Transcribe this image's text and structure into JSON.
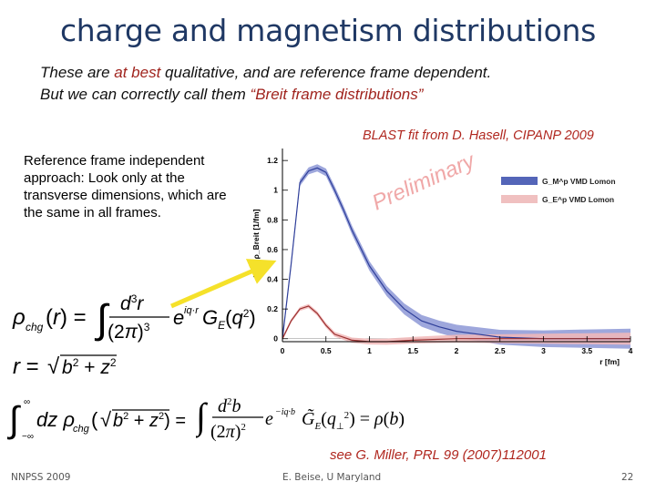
{
  "slide": {
    "title": "charge and magnetism distributions",
    "intro_line1_pre": "These are ",
    "intro_line1_em": "at best",
    "intro_line1_post": " qualitative, and are reference frame dependent.",
    "intro_line2_pre": "But we can correctly call them ",
    "intro_line2_em": "“Breit frame distributions”",
    "blast_credit": "BLAST fit from D. Hasell, CIPANP 2009",
    "side_text": "Reference frame independent approach: Look only at the transverse dimensions, which are the same in all frames.",
    "miller_ref": "see G. Miller, PRL 99 (2007)112001",
    "footer_left": "NNPSS 2009",
    "footer_center": "E. Beise, U Maryland",
    "footer_right": "22",
    "arrow_color": "#f5e12a",
    "accent_red": "#b0271f"
  },
  "chart_data": {
    "type": "line",
    "xlabel": "r [fm]",
    "ylabel": "4π r² ρ_Breit [1/fm]",
    "xlim": [
      0,
      4
    ],
    "ylim": [
      -0.02,
      1.25
    ],
    "x_ticks": [
      "0",
      "0.5",
      "1",
      "1.5",
      "2",
      "2.5",
      "3",
      "3.5",
      "4"
    ],
    "y_ticks": [
      "0",
      "0.2",
      "0.4",
      "0.6",
      "0.8",
      "1",
      "1.2"
    ],
    "watermark": "Preliminary",
    "legend_position": "top-right",
    "legend": [
      {
        "label": "G_M^p  VMD Lomon",
        "color": "#4a5fb0"
      },
      {
        "label": "G_E^p  VMD Lomon",
        "color": "#e5a3a3"
      }
    ],
    "series": [
      {
        "name": "G_M^p VMD Lomon",
        "color": "#2f3f9a",
        "x": [
          0,
          0.1,
          0.2,
          0.3,
          0.4,
          0.5,
          0.6,
          0.7,
          0.8,
          1.0,
          1.2,
          1.4,
          1.6,
          1.8,
          2.0,
          2.5,
          3.0,
          3.5,
          4.0
        ],
        "y": [
          0,
          0.5,
          1.05,
          1.13,
          1.15,
          1.12,
          1.0,
          0.87,
          0.73,
          0.49,
          0.32,
          0.2,
          0.12,
          0.08,
          0.05,
          0.01,
          0,
          0,
          0
        ]
      },
      {
        "name": "G_E^p VMD Lomon",
        "color": "#9a3030",
        "x": [
          0,
          0.1,
          0.2,
          0.3,
          0.4,
          0.5,
          0.6,
          0.8,
          1.0,
          1.2,
          1.5,
          2.0,
          3.0,
          4.0
        ],
        "y": [
          0,
          0.12,
          0.2,
          0.22,
          0.17,
          0.09,
          0.03,
          -0.01,
          -0.02,
          -0.02,
          -0.01,
          0,
          0,
          0
        ]
      }
    ]
  }
}
